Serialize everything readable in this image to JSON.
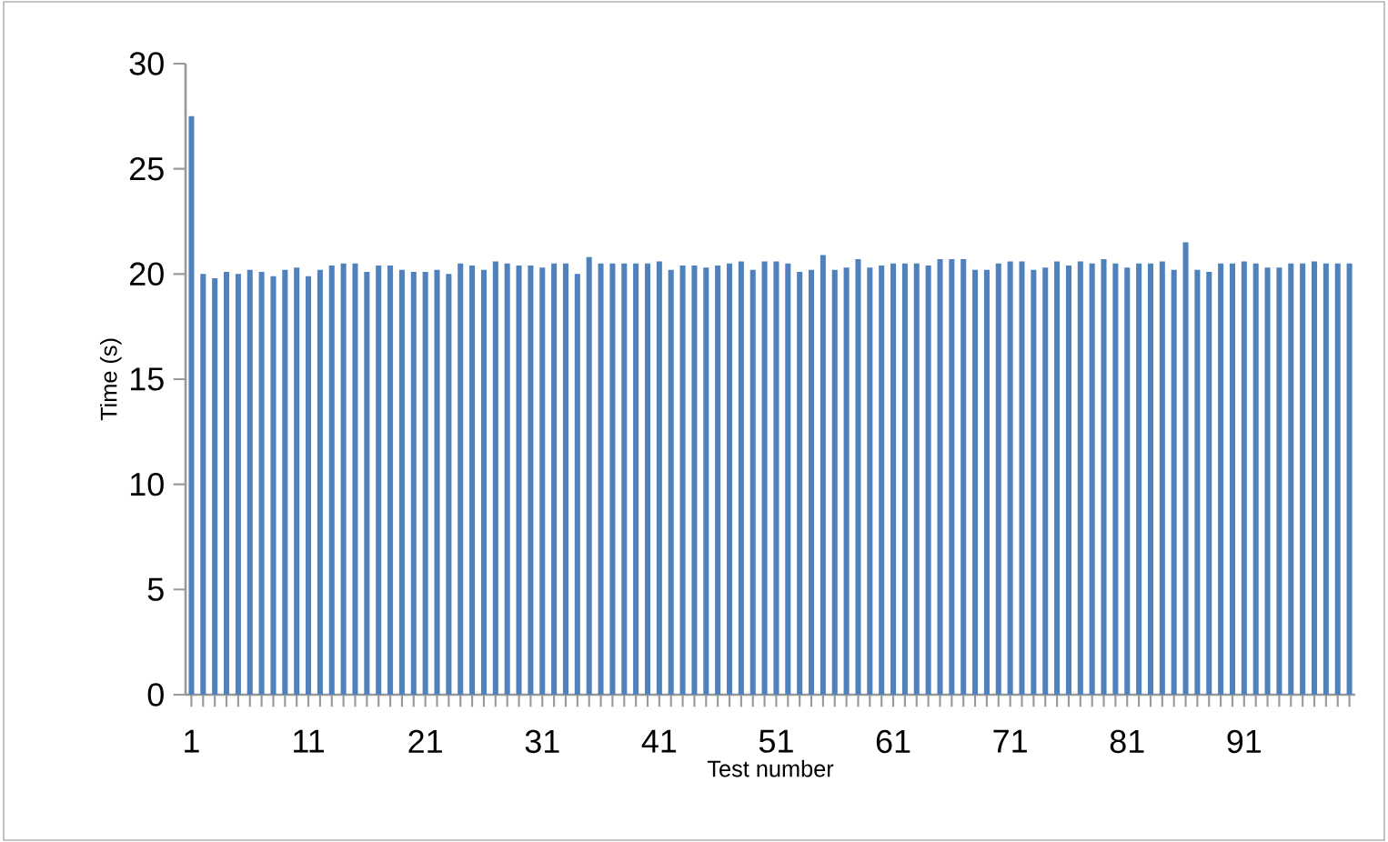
{
  "chart_data": {
    "type": "bar",
    "xlabel": "Test number",
    "ylabel": "Time (s)",
    "categories": [
      "1",
      null,
      null,
      null,
      null,
      null,
      null,
      null,
      null,
      null,
      "11",
      null,
      null,
      null,
      null,
      null,
      null,
      null,
      null,
      null,
      "21",
      null,
      null,
      null,
      null,
      null,
      null,
      null,
      null,
      null,
      "31",
      null,
      null,
      null,
      null,
      null,
      null,
      null,
      null,
      null,
      "41",
      null,
      null,
      null,
      null,
      null,
      null,
      null,
      null,
      null,
      "51",
      null,
      null,
      null,
      null,
      null,
      null,
      null,
      null,
      null,
      "61",
      null,
      null,
      null,
      null,
      null,
      null,
      null,
      null,
      null,
      "71",
      null,
      null,
      null,
      null,
      null,
      null,
      null,
      null,
      null,
      "81",
      null,
      null,
      null,
      null,
      null,
      null,
      null,
      null,
      null,
      "91",
      null,
      null,
      null,
      null,
      null,
      null,
      null,
      null,
      null
    ],
    "values": [
      27.5,
      20.0,
      19.8,
      20.1,
      20.0,
      20.2,
      20.1,
      19.9,
      20.2,
      20.3,
      19.9,
      20.2,
      20.4,
      20.5,
      20.5,
      20.1,
      20.4,
      20.4,
      20.2,
      20.1,
      20.1,
      20.2,
      20.0,
      20.5,
      20.4,
      20.2,
      20.6,
      20.5,
      20.4,
      20.4,
      20.3,
      20.5,
      20.5,
      20.0,
      20.8,
      20.5,
      20.5,
      20.5,
      20.5,
      20.5,
      20.6,
      20.2,
      20.4,
      20.4,
      20.3,
      20.4,
      20.5,
      20.6,
      20.2,
      20.6,
      20.6,
      20.5,
      20.1,
      20.2,
      20.9,
      20.2,
      20.3,
      20.7,
      20.3,
      20.4,
      20.5,
      20.5,
      20.5,
      20.4,
      20.7,
      20.7,
      20.7,
      20.2,
      20.2,
      20.5,
      20.6,
      20.6,
      20.2,
      20.3,
      20.6,
      20.4,
      20.6,
      20.5,
      20.7,
      20.5,
      20.3,
      20.5,
      20.5,
      20.6,
      20.2,
      21.5,
      20.2,
      20.1,
      20.5,
      20.5,
      20.6,
      20.5,
      20.3,
      20.3,
      20.5,
      20.5,
      20.6,
      20.5,
      20.5,
      20.5
    ],
    "color": "#4f81bd",
    "ylim": [
      0,
      30
    ],
    "yticks": [
      0,
      5,
      10,
      15,
      20,
      25,
      30
    ],
    "grid": false
  }
}
